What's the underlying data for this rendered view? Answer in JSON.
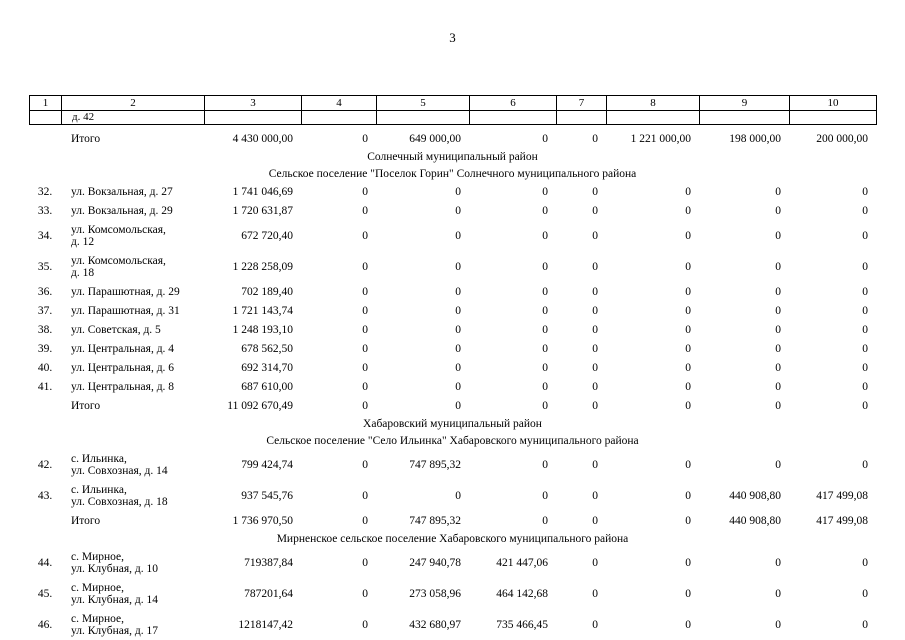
{
  "page": {
    "number": "3"
  },
  "table": {
    "column_numbers": [
      "1",
      "2",
      "3",
      "4",
      "5",
      "6",
      "7",
      "8",
      "9",
      "10"
    ],
    "carryover_text": "д. 42",
    "rows": [
      {
        "type": "total",
        "num": "",
        "label": "Итого",
        "values": [
          "4 430 000,00",
          "0",
          "649 000,00",
          "0",
          "0",
          "1 221 000,00",
          "198 000,00",
          "200 000,00"
        ]
      },
      {
        "type": "section",
        "text": "Солнечный муниципальный  район"
      },
      {
        "type": "subsection",
        "text": "Сельское поселение \"Поселок Горин\" Солнечного муниципального района"
      },
      {
        "type": "data",
        "num": "32.",
        "address": [
          "ул. Вокзальная, д. 27"
        ],
        "values": [
          "1 741 046,69",
          "0",
          "0",
          "0",
          "0",
          "0",
          "0",
          "0"
        ]
      },
      {
        "type": "data",
        "num": "33.",
        "address": [
          "ул. Вокзальная, д. 29"
        ],
        "values": [
          "1 720 631,87",
          "0",
          "0",
          "0",
          "0",
          "0",
          "0",
          "0"
        ]
      },
      {
        "type": "data",
        "num": "34.",
        "address": [
          "ул. Комсомольская,",
          "д. 12"
        ],
        "values": [
          "672 720,40",
          "0",
          "0",
          "0",
          "0",
          "0",
          "0",
          "0"
        ]
      },
      {
        "type": "data",
        "num": "35.",
        "address": [
          "ул. Комсомольская,",
          "д. 18"
        ],
        "values": [
          "1 228 258,09",
          "0",
          "0",
          "0",
          "0",
          "0",
          "0",
          "0"
        ]
      },
      {
        "type": "data",
        "num": "36.",
        "address": [
          "ул. Парашютная, д. 29"
        ],
        "values": [
          "702 189,40",
          "0",
          "0",
          "0",
          "0",
          "0",
          "0",
          "0"
        ]
      },
      {
        "type": "data",
        "num": "37.",
        "address": [
          "ул. Парашютная, д. 31"
        ],
        "values": [
          "1 721 143,74",
          "0",
          "0",
          "0",
          "0",
          "0",
          "0",
          "0"
        ]
      },
      {
        "type": "data",
        "num": "38.",
        "address": [
          "ул. Советская, д. 5"
        ],
        "values": [
          "1 248 193,10",
          "0",
          "0",
          "0",
          "0",
          "0",
          "0",
          "0"
        ]
      },
      {
        "type": "data",
        "num": "39.",
        "address": [
          "ул. Центральная, д. 4"
        ],
        "values": [
          "678 562,50",
          "0",
          "0",
          "0",
          "0",
          "0",
          "0",
          "0"
        ]
      },
      {
        "type": "data",
        "num": "40.",
        "address": [
          "ул. Центральная, д. 6"
        ],
        "values": [
          "692 314,70",
          "0",
          "0",
          "0",
          "0",
          "0",
          "0",
          "0"
        ]
      },
      {
        "type": "data",
        "num": "41.",
        "address": [
          "ул. Центральная, д. 8"
        ],
        "values": [
          "687 610,00",
          "0",
          "0",
          "0",
          "0",
          "0",
          "0",
          "0"
        ]
      },
      {
        "type": "total",
        "num": "",
        "label": "Итого",
        "values": [
          "11 092 670,49",
          "0",
          "0",
          "0",
          "0",
          "0",
          "0",
          "0"
        ]
      },
      {
        "type": "section",
        "text": "Хабаровский муниципальный район"
      },
      {
        "type": "subsection",
        "text": "Сельское поселение \"Село Ильинка\" Хабаровского муниципального района"
      },
      {
        "type": "data",
        "num": "42.",
        "address": [
          "с. Ильинка,",
          "ул. Совхозная, д. 14"
        ],
        "values": [
          "799 424,74",
          "0",
          "747 895,32",
          "0",
          "0",
          "0",
          "0",
          "0"
        ]
      },
      {
        "type": "data",
        "num": "43.",
        "address": [
          "с. Ильинка,",
          "ул. Совхозная, д. 18"
        ],
        "values": [
          "937 545,76",
          "0",
          "0",
          "0",
          "0",
          "0",
          "440 908,80",
          "417 499,08"
        ]
      },
      {
        "type": "total",
        "num": "",
        "label": "Итого",
        "values": [
          "1 736 970,50",
          "0",
          "747 895,32",
          "0",
          "0",
          "0",
          "440 908,80",
          "417 499,08"
        ]
      },
      {
        "type": "subsection",
        "text": "Мирненское сельское поселение  Хабаровского муниципального района"
      },
      {
        "type": "data",
        "num": "44.",
        "address": [
          "с. Мирное,",
          "ул. Клубная, д. 10"
        ],
        "values": [
          "719387,84",
          "0",
          "247 940,78",
          "421 447,06",
          "0",
          "0",
          "0",
          "0"
        ]
      },
      {
        "type": "data",
        "num": "45.",
        "address": [
          "с. Мирное,",
          "ул. Клубная, д. 14"
        ],
        "values": [
          "787201,64",
          "0",
          "273 058,96",
          "464 142,68",
          "0",
          "0",
          "0",
          "0"
        ]
      },
      {
        "type": "data",
        "num": "46.",
        "address": [
          "с. Мирное,",
          "ул. Клубная, д. 17"
        ],
        "values": [
          "1218147,42",
          "0",
          "432 680,97",
          "735 466,45",
          "0",
          "0",
          "0",
          "0"
        ]
      }
    ]
  }
}
